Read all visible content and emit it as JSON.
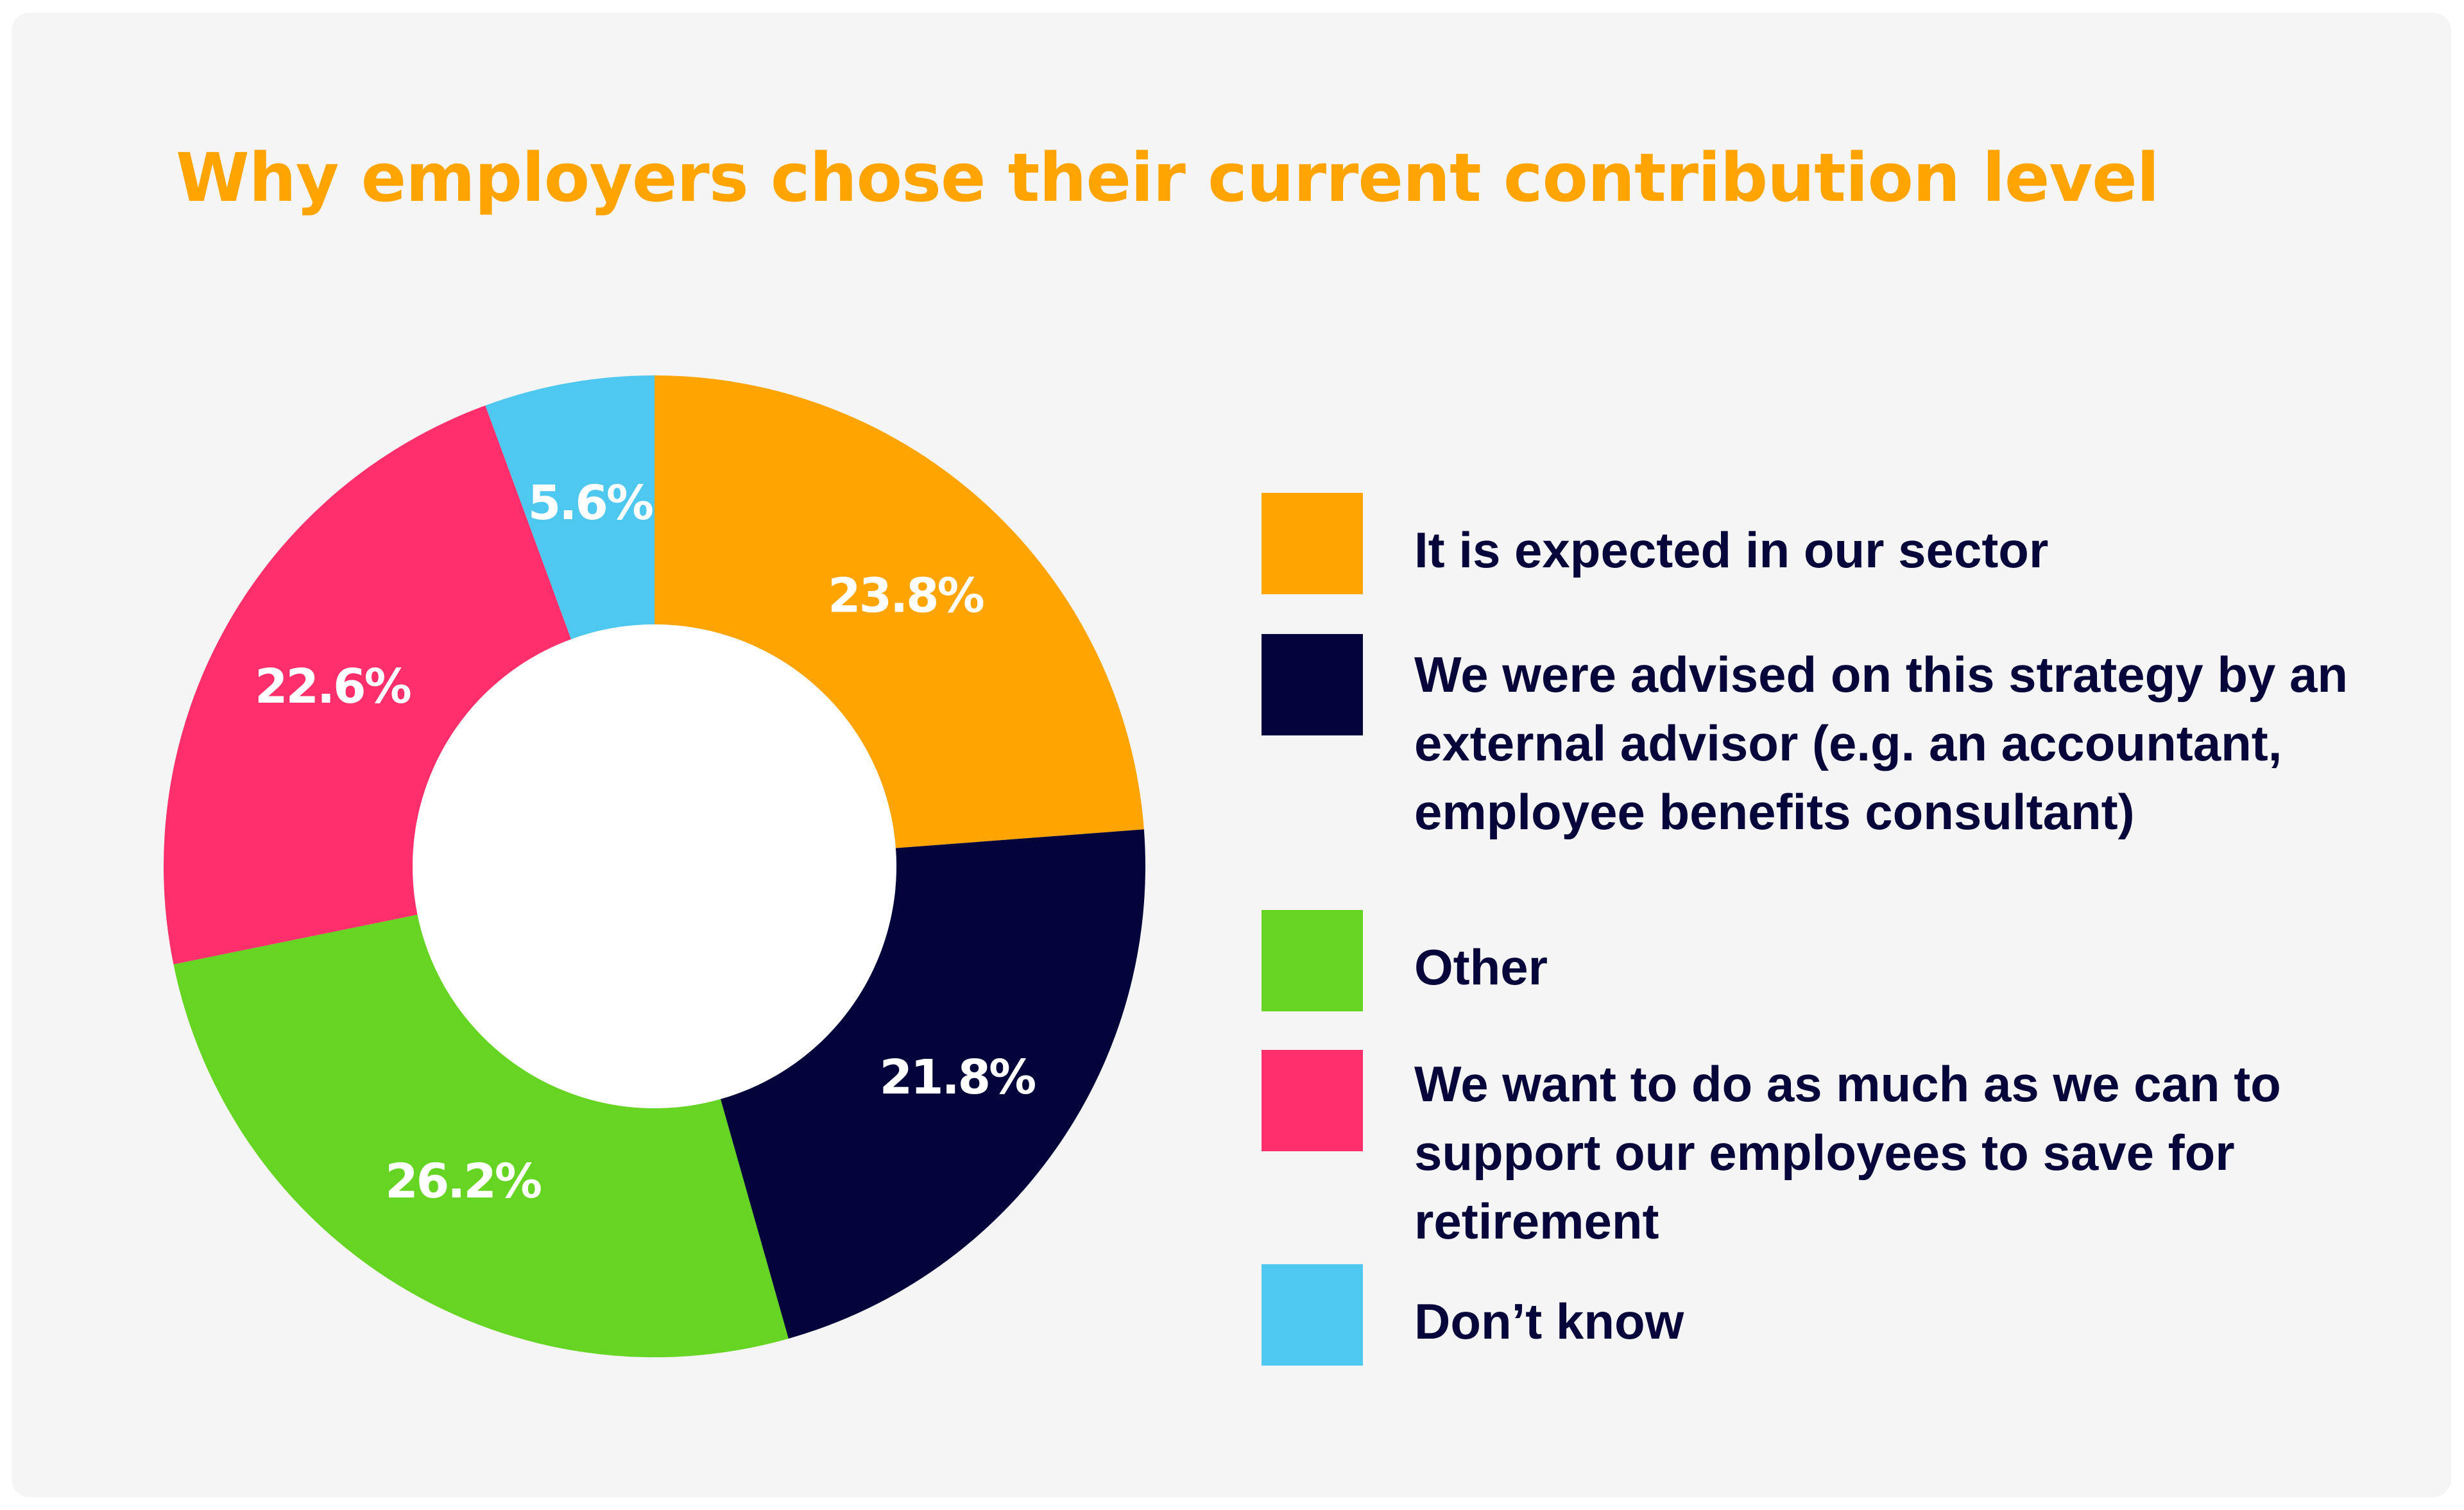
{
  "colors": {
    "background": "#f5f5f5",
    "title": "#ffa400",
    "text": "#07063a"
  },
  "chart_data": {
    "type": "donut",
    "title": "Why employers chose their current contribution level",
    "value_suffix": "%",
    "slices": [
      {
        "label": "It is expected in our sector",
        "value": 23.8,
        "value_label": "23.8%",
        "color": "#ffa400"
      },
      {
        "label": "We were advised on this strategy by an external advisor (e.g. an accountant, employee benefits consultant)",
        "value": 21.8,
        "value_label": "21.8%",
        "color": "#03043a"
      },
      {
        "label": "Other",
        "value": 26.2,
        "value_label": "26.2%",
        "color": "#66d423"
      },
      {
        "label": "We want to do as much as we can to support our employees to save for retirement",
        "value": 22.6,
        "value_label": "22.6%",
        "color": "#ff2f6c"
      },
      {
        "label": "Don’t know",
        "value": 5.6,
        "value_label": "5.6%",
        "color": "#4fc8ef"
      }
    ],
    "legend_position": "right"
  }
}
